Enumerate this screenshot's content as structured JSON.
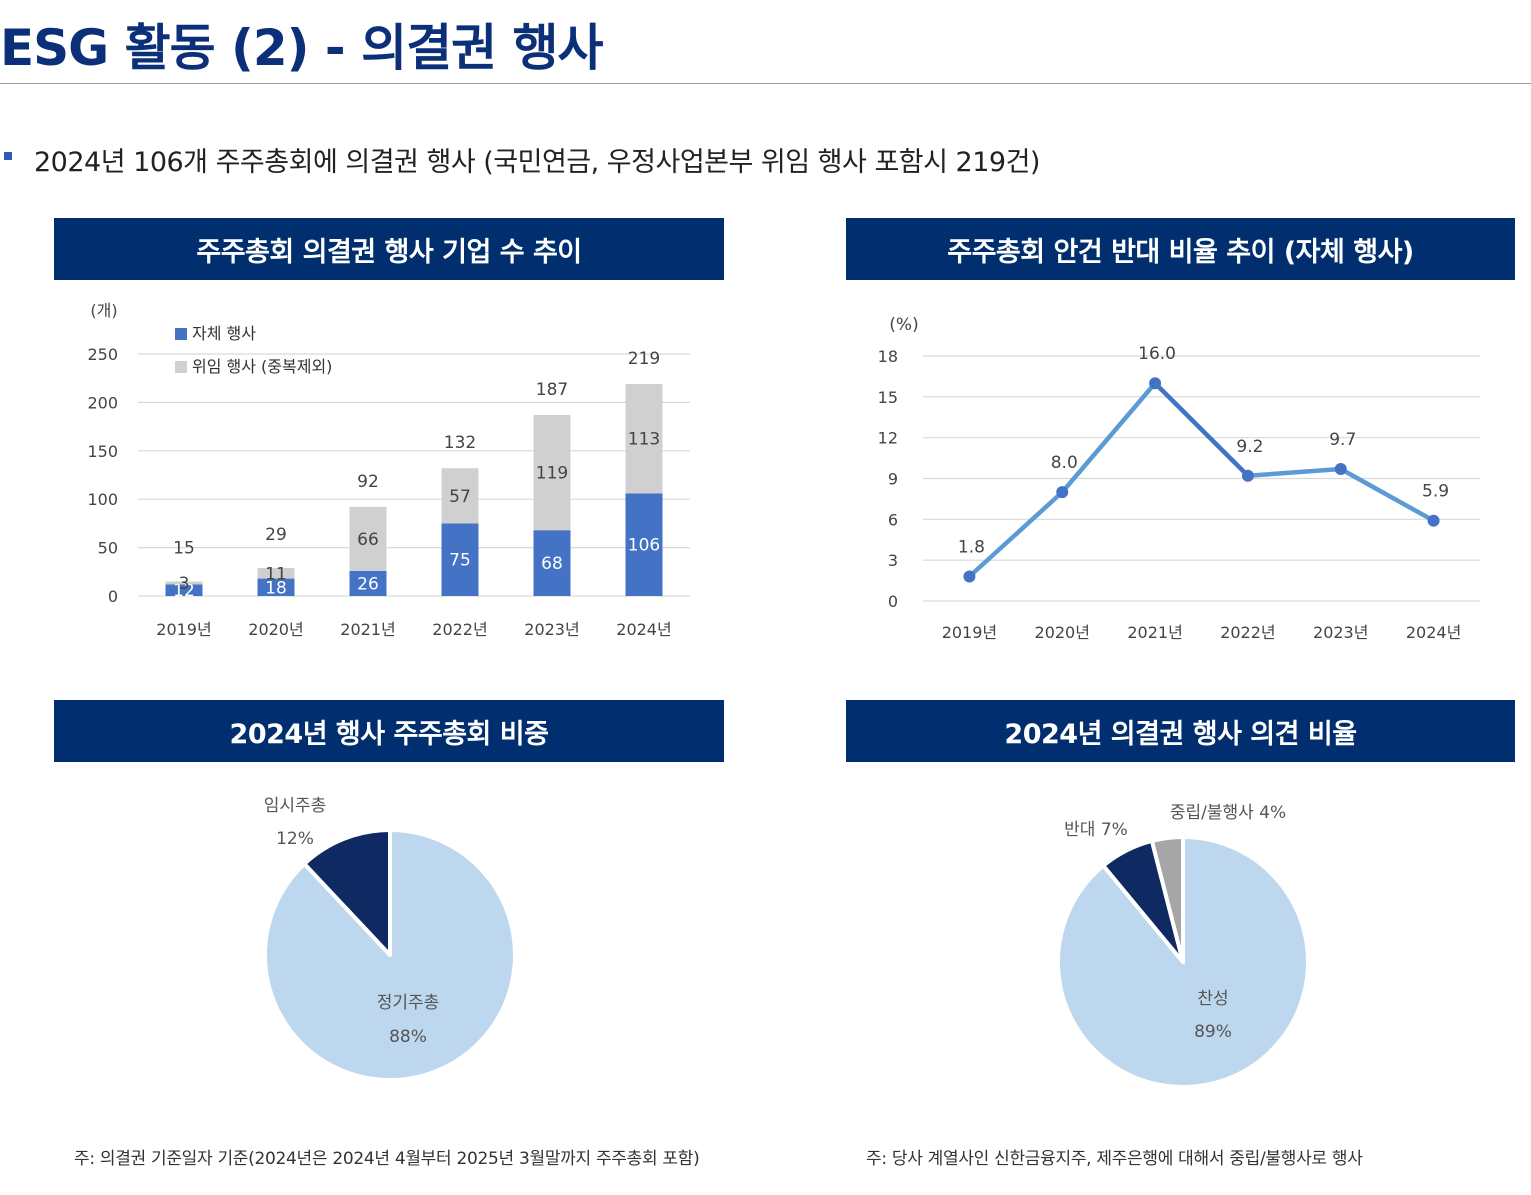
{
  "page": {
    "title": "ESG 활동 (2) - 의결권 행사",
    "subtitle": "2024년 106개 주주총회에 의결권 행사 (국민연금, 우정사업본부 위임 행사 포함시 219건)"
  },
  "notes": {
    "left": "주: 의결권 기준일자 기준(2024년은 2024년 4월부터 2025년 3월말까지 주주총회 포함)",
    "right": "주: 당사 계열사인 신한금융지주, 제주은행에 대해서 중립/불행사로 행사"
  },
  "colors": {
    "header_bg": "#002e6e",
    "title": "#0b2f78",
    "self_bar": "#4472c4",
    "delegated_bar": "#d0d0d0",
    "line": "#5b9bd5",
    "line_highlight": "#4472c4",
    "pie_light": "#bdd7ee",
    "pie_dark": "#0f2a63",
    "pie_gray": "#a6a6a6"
  },
  "chart_data": [
    {
      "type": "bar",
      "title": "주주총회 의결권 행사 기업 수 추이",
      "ylabel": "(개)",
      "ylim": [
        0,
        250
      ],
      "yticks": [
        0,
        50,
        100,
        150,
        200,
        250
      ],
      "grid": true,
      "legend_position": "top-left",
      "categories": [
        "2019년",
        "2020년",
        "2021년",
        "2022년",
        "2023년",
        "2024년"
      ],
      "series": [
        {
          "name": "자체 행사",
          "values": [
            12,
            18,
            26,
            75,
            68,
            106
          ],
          "color": "#4472c4",
          "labels": [
            "12",
            "18",
            "26",
            "75",
            "68",
            "106"
          ]
        },
        {
          "name": "위임 행사 (중복제외)",
          "values": [
            3,
            11,
            66,
            57,
            119,
            113
          ],
          "color": "#d0d0d0",
          "labels": [
            "3",
            "11",
            "66",
            "57",
            "119",
            "113"
          ]
        }
      ],
      "totals": [
        "15",
        "29",
        "92",
        "132",
        "187",
        "219"
      ]
    },
    {
      "type": "line",
      "title": "주주총회 안건 반대 비율 추이 (자체 행사)",
      "ylabel": "(%)",
      "ylim": [
        0,
        18
      ],
      "yticks": [
        0,
        3,
        6,
        9,
        12,
        15,
        18
      ],
      "grid": true,
      "x": [
        "2019년",
        "2020년",
        "2021년",
        "2022년",
        "2023년",
        "2024년"
      ],
      "series": [
        {
          "values": [
            1.8,
            8.0,
            16.0,
            9.2,
            9.7,
            5.9
          ],
          "labels": [
            "1.8",
            "8.0",
            "16.0",
            "9.2",
            "9.7",
            "5.9"
          ]
        }
      ]
    },
    {
      "type": "pie",
      "title": "2024년 행사 주주총회 비중",
      "slices": [
        {
          "label": "정기주총",
          "value": 88,
          "pct": "88%",
          "color": "#bdd7ee"
        },
        {
          "label": "임시주총",
          "value": 12,
          "pct": "12%",
          "color": "#0f2a63"
        }
      ]
    },
    {
      "type": "pie",
      "title": "2024년 의결권 행사 의견 비율",
      "slices": [
        {
          "label": "찬성",
          "value": 89,
          "pct": "89%",
          "color": "#bdd7ee"
        },
        {
          "label": "반대 7%",
          "value": 7,
          "color": "#0f2a63"
        },
        {
          "label": "중립/불행사 4%",
          "value": 4,
          "color": "#a6a6a6"
        }
      ]
    }
  ]
}
